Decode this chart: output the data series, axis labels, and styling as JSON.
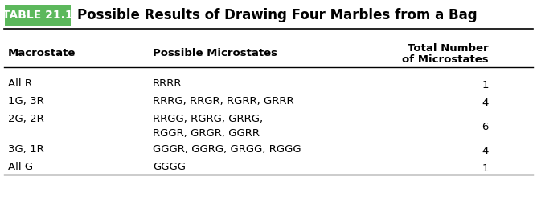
{
  "title_label": "TABLE 21.1",
  "title_text": "Possible Results of Drawing Four Marbles from a Bag",
  "title_bg_color": "#5cb85c",
  "title_label_color": "#ffffff",
  "header_col1": "Macrostate",
  "header_col2": "Possible Microstates",
  "header_col3": "Total Number\nof Microstates",
  "rows": [
    {
      "col1": "All R",
      "col2": "RRRR",
      "col3": "1"
    },
    {
      "col1": "1G, 3R",
      "col2": "RRRG, RRGR, RGRR, GRRR",
      "col3": "4"
    },
    {
      "col1": "2G, 2R",
      "col2": "RRGG, RGRG, GRRG,\nRGGR, GRGR, GGRR",
      "col3": "6"
    },
    {
      "col1": "3G, 1R",
      "col2": "GGGR, GGRG, GRGG, RGGG",
      "col3": "4"
    },
    {
      "col1": "All G",
      "col2": "GGGG",
      "col3": "1"
    }
  ],
  "bg_color": "#ffffff",
  "text_color": "#000000",
  "font_size": 9.5,
  "header_font_size": 9.5,
  "title_font_size": 12
}
